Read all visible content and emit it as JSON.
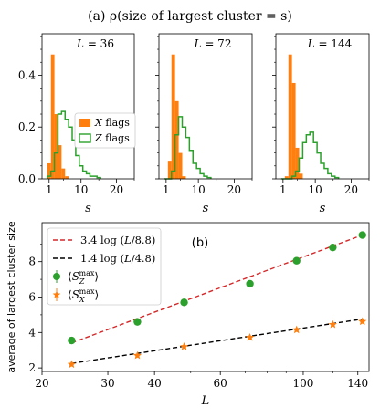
{
  "chart_data": [
    {
      "id": "a",
      "type": "bar",
      "title": "(a) ρ(size of largest cluster = s)",
      "xlabel": "s",
      "xlim": [
        -1,
        25
      ],
      "ylim": [
        0,
        0.56
      ],
      "xticks": [
        1,
        10,
        20
      ],
      "yticks": [
        0.0,
        0.2,
        0.4
      ],
      "ytick_labels": [
        "0.0",
        "0.2",
        "0.4"
      ],
      "series_names": [
        "X flags",
        "Z flags"
      ],
      "colors": {
        "x": "#ff7f0e",
        "z": "#2ca02c"
      },
      "panels": [
        {
          "label": "L = 36",
          "show_legend": true,
          "x_flags": {
            "bin_width": 1,
            "start": 1,
            "values": [
              0.06,
              0.48,
              0.25,
              0.13,
              0.04,
              0.01
            ]
          },
          "z_flags": {
            "bin_width": 1,
            "start": 1,
            "values": [
              0.01,
              0.03,
              0.1,
              0.25,
              0.26,
              0.23,
              0.2,
              0.15,
              0.09,
              0.05,
              0.03,
              0.02,
              0.01,
              0.01,
              0.005
            ]
          }
        },
        {
          "label": "L = 72",
          "show_legend": false,
          "x_flags": {
            "bin_width": 1,
            "start": 1,
            "values": [
              0.0,
              0.07,
              0.48,
              0.3,
              0.1,
              0.01
            ]
          },
          "z_flags": {
            "bin_width": 1,
            "start": 1,
            "values": [
              0.0,
              0.0,
              0.03,
              0.17,
              0.24,
              0.2,
              0.16,
              0.11,
              0.06,
              0.04,
              0.02,
              0.01,
              0.005
            ]
          }
        },
        {
          "label": "L = 144",
          "show_legend": false,
          "x_flags": {
            "bin_width": 1,
            "start": 1,
            "values": [
              0.0,
              0.01,
              0.48,
              0.37,
              0.12,
              0.02
            ]
          },
          "z_flags": {
            "bin_width": 1,
            "start": 1,
            "values": [
              0.0,
              0.0,
              0.0,
              0.01,
              0.03,
              0.08,
              0.14,
              0.17,
              0.18,
              0.14,
              0.1,
              0.06,
              0.04,
              0.02,
              0.01,
              0.005
            ]
          }
        }
      ]
    },
    {
      "id": "b",
      "type": "scatter",
      "panel_label": "(b)",
      "xlabel": "L",
      "ylabel": "average of largest cluster size",
      "xscale": "log",
      "xlim": [
        20,
        150
      ],
      "ylim": [
        1.8,
        10.2
      ],
      "xticks": [
        20,
        30,
        40,
        60,
        100,
        140
      ],
      "yticks": [
        2,
        4,
        6,
        8
      ],
      "series": [
        {
          "name": "⟨S_Z^max⟩",
          "marker": "circle",
          "color": "#2ca02c",
          "x": [
            24,
            36,
            48,
            72,
            96,
            120,
            144
          ],
          "y": [
            3.55,
            4.6,
            5.7,
            6.75,
            8.05,
            8.8,
            9.5
          ]
        },
        {
          "name": "⟨S_X^max⟩",
          "marker": "star",
          "color": "#ff7f0e",
          "x": [
            24,
            36,
            48,
            72,
            96,
            120,
            144
          ],
          "y": [
            2.2,
            2.7,
            3.2,
            3.72,
            4.15,
            4.45,
            4.62
          ]
        }
      ],
      "fits": [
        {
          "name": "3.4 log(L/8.8)",
          "a": 3.4,
          "L0": 8.8,
          "color": "#d62728",
          "x_range": [
            24,
            144
          ]
        },
        {
          "name": "1.4 log(L/4.8)",
          "a": 1.4,
          "L0": 4.8,
          "color": "#000000",
          "x_range": [
            24,
            144
          ]
        }
      ]
    }
  ]
}
